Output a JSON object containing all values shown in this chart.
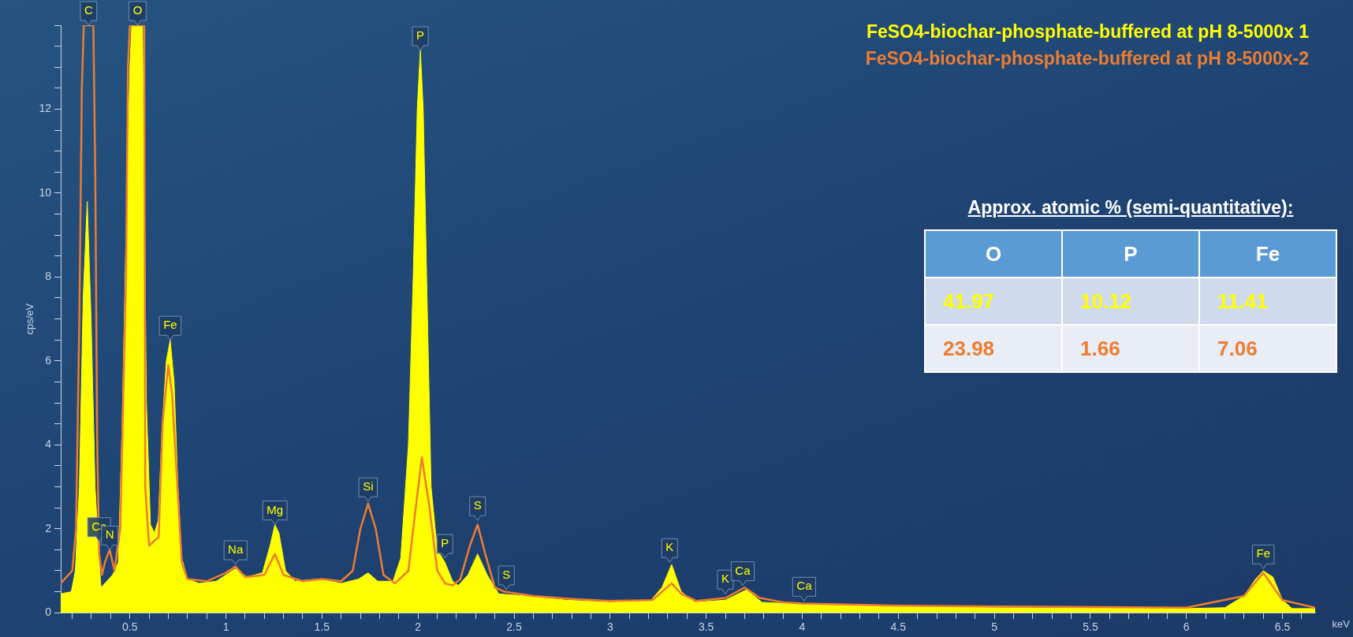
{
  "chart_data": [
    {
      "type": "area",
      "xlabel": "keV",
      "ylabel": "cps/eV",
      "xlim": [
        0.14,
        6.67
      ],
      "ylim": [
        0,
        14
      ],
      "xticks": [
        {
          "value": 0.2,
          "label": null
        },
        {
          "value": 0.3,
          "label": null
        },
        {
          "value": 0.4,
          "label": null
        },
        0.5,
        {
          "value": 0.6,
          "label": null
        },
        {
          "value": 0.7,
          "label": null
        },
        {
          "value": 0.8,
          "label": null
        },
        {
          "value": 0.9,
          "label": null
        },
        1,
        {
          "value": 1.1,
          "label": null
        },
        {
          "value": 1.2,
          "label": null
        },
        {
          "value": 1.3,
          "label": null
        },
        {
          "value": 1.4,
          "label": null
        },
        1.5,
        {
          "value": 1.6,
          "label": null
        },
        {
          "value": 1.7,
          "label": null
        },
        {
          "value": 1.8,
          "label": null
        },
        {
          "value": 1.9,
          "label": null
        },
        2,
        {
          "value": 2.1,
          "label": null
        },
        {
          "value": 2.2,
          "label": null
        },
        {
          "value": 2.3,
          "label": null
        },
        {
          "value": 2.4,
          "label": null
        },
        2.5,
        {
          "value": 2.6,
          "label": null
        },
        {
          "value": 2.7,
          "label": null
        },
        {
          "value": 2.8,
          "label": null
        },
        {
          "value": 2.9,
          "label": null
        },
        3,
        {
          "value": 3.1,
          "label": null
        },
        {
          "value": 3.2,
          "label": null
        },
        {
          "value": 3.3,
          "label": null
        },
        {
          "value": 3.4,
          "label": null
        },
        3.5,
        {
          "value": 3.6,
          "label": null
        },
        {
          "value": 3.7,
          "label": null
        },
        {
          "value": 3.8,
          "label": null
        },
        {
          "value": 3.9,
          "label": null
        },
        4,
        {
          "value": 4.1,
          "label": null
        },
        {
          "value": 4.2,
          "label": null
        },
        {
          "value": 4.3,
          "label": null
        },
        {
          "value": 4.4,
          "label": null
        },
        4.5,
        {
          "value": 4.6,
          "label": null
        },
        {
          "value": 4.7,
          "label": null
        },
        {
          "value": 4.8,
          "label": null
        },
        {
          "value": 4.9,
          "label": null
        },
        5,
        {
          "value": 5.1,
          "label": null
        },
        {
          "value": 5.2,
          "label": null
        },
        {
          "value": 5.3,
          "label": null
        },
        {
          "value": 5.4,
          "label": null
        },
        5.5,
        {
          "value": 5.6,
          "label": null
        },
        {
          "value": 5.7,
          "label": null
        },
        {
          "value": 5.8,
          "label": null
        },
        {
          "value": 5.9,
          "label": null
        },
        6,
        {
          "value": 6.1,
          "label": null
        },
        {
          "value": 6.2,
          "label": null
        },
        {
          "value": 6.3,
          "label": null
        },
        {
          "value": 6.4,
          "label": null
        },
        6.5,
        {
          "value": 6.6,
          "label": null
        }
      ],
      "yticks": [
        0,
        {
          "value": 0.5,
          "label": null
        },
        {
          "value": 1,
          "label": null
        },
        {
          "value": 1.5,
          "label": null
        },
        2,
        {
          "value": 2.5,
          "label": null
        },
        {
          "value": 3,
          "label": null
        },
        {
          "value": 3.5,
          "label": null
        },
        4,
        {
          "value": 4.5,
          "label": null
        },
        {
          "value": 5,
          "label": null
        },
        {
          "value": 5.5,
          "label": null
        },
        6,
        {
          "value": 6.5,
          "label": null
        },
        {
          "value": 7,
          "label": null
        },
        {
          "value": 7.5,
          "label": null
        },
        8,
        {
          "value": 8.5,
          "label": null
        },
        {
          "value": 9,
          "label": null
        },
        {
          "value": 9.5,
          "label": null
        },
        10,
        {
          "value": 10.5,
          "label": null
        },
        {
          "value": 11,
          "label": null
        },
        {
          "value": 11.5,
          "label": null
        },
        12,
        {
          "value": 12.5,
          "label": null
        },
        {
          "value": 13,
          "label": null
        },
        {
          "value": 13.5,
          "label": null
        },
        {
          "value": 14,
          "label": null
        }
      ],
      "grid": false,
      "legend": "top right",
      "marker": "none",
      "series": [
        {
          "name": "FeSO4-biochar-phosphate-buffered at pH 8-5000x 1",
          "type": "area",
          "color": "#ffff00",
          "x": [
            0.14,
            0.195,
            0.216,
            0.237,
            0.257,
            0.278,
            0.298,
            0.319,
            0.34,
            0.35,
            0.38,
            0.41,
            0.44,
            0.46,
            0.48,
            0.5,
            0.51,
            0.566,
            0.586,
            0.607,
            0.628,
            0.648,
            0.669,
            0.69,
            0.71,
            0.73,
            0.75,
            0.77,
            0.8,
            0.86,
            0.95,
            1.0,
            1.05,
            1.11,
            1.19,
            1.23,
            1.255,
            1.276,
            1.31,
            1.36,
            1.48,
            1.6,
            1.69,
            1.74,
            1.79,
            1.87,
            1.91,
            1.95,
            1.975,
            1.996,
            2.012,
            2.027,
            2.047,
            2.068,
            2.1,
            2.14,
            2.18,
            2.21,
            2.26,
            2.31,
            2.36,
            2.42,
            2.56,
            2.77,
            3.0,
            3.21,
            3.27,
            3.32,
            3.37,
            3.44,
            3.6,
            3.71,
            3.79,
            4.0,
            4.54,
            5.0,
            6.0,
            6.2,
            6.3,
            6.36,
            6.4,
            6.45,
            6.5,
            6.55,
            6.67
          ],
          "values": [
            0.45,
            0.5,
            1.0,
            3.0,
            7.5,
            9.8,
            7.0,
            3.0,
            1.2,
            0.6,
            0.75,
            0.9,
            1.2,
            4.5,
            9,
            13,
            14,
            14,
            5,
            2.1,
            1.9,
            2.2,
            4.5,
            6.0,
            6.5,
            5.5,
            3,
            1.3,
            0.8,
            0.7,
            0.75,
            0.9,
            1.05,
            0.85,
            0.95,
            1.6,
            2.1,
            1.9,
            1.0,
            0.75,
            0.8,
            0.7,
            0.8,
            0.95,
            0.75,
            0.75,
            1.3,
            4,
            8,
            12,
            13.4,
            12,
            7.5,
            3,
            1.5,
            1.2,
            0.75,
            0.65,
            0.9,
            1.4,
            0.9,
            0.45,
            0.4,
            0.3,
            0.25,
            0.28,
            0.6,
            1.15,
            0.5,
            0.25,
            0.3,
            0.55,
            0.25,
            0.2,
            0.15,
            0.12,
            0.1,
            0.12,
            0.4,
            0.8,
            1.0,
            0.85,
            0.3,
            0.1,
            0.1
          ]
        },
        {
          "name": "FeSO4-biochar-phosphate-buffered at pH 8-5000x-2",
          "type": "line",
          "color": "#ed7d31",
          "x": [
            0.14,
            0.2,
            0.22,
            0.237,
            0.25,
            0.26,
            0.31,
            0.32,
            0.33,
            0.34,
            0.355,
            0.37,
            0.395,
            0.42,
            0.45,
            0.46,
            0.48,
            0.49,
            0.5,
            0.575,
            0.58,
            0.6,
            0.65,
            0.67,
            0.7,
            0.72,
            0.75,
            0.77,
            0.8,
            0.9,
            1.0,
            1.05,
            1.1,
            1.2,
            1.255,
            1.3,
            1.4,
            1.5,
            1.6,
            1.66,
            1.7,
            1.74,
            1.78,
            1.82,
            1.88,
            1.95,
            1.98,
            2.02,
            2.06,
            2.1,
            2.14,
            2.18,
            2.22,
            2.27,
            2.31,
            2.35,
            2.4,
            2.45,
            2.6,
            2.8,
            3.0,
            3.22,
            3.27,
            3.32,
            3.37,
            3.45,
            3.6,
            3.7,
            3.78,
            3.9,
            4.0,
            4.5,
            5.0,
            6.0,
            6.3,
            6.4,
            6.5,
            6.67
          ],
          "values": [
            0.7,
            1.0,
            2.0,
            7.0,
            12.5,
            14,
            14,
            10.4,
            4,
            1.4,
            0.9,
            1.2,
            1.5,
            1.0,
            2,
            4.0,
            8,
            13,
            14,
            14,
            3,
            1.6,
            1.8,
            4.5,
            5.9,
            5.2,
            2.8,
            1.2,
            0.8,
            0.75,
            0.95,
            1.1,
            0.85,
            0.9,
            1.4,
            0.9,
            0.75,
            0.8,
            0.75,
            1.0,
            2.0,
            2.6,
            2.0,
            0.9,
            0.7,
            1.0,
            2.2,
            3.7,
            2.5,
            1.0,
            0.7,
            0.65,
            0.8,
            1.6,
            2.1,
            1.4,
            0.6,
            0.5,
            0.4,
            0.33,
            0.28,
            0.3,
            0.5,
            0.7,
            0.45,
            0.28,
            0.35,
            0.6,
            0.35,
            0.25,
            0.22,
            0.17,
            0.15,
            0.12,
            0.4,
            0.95,
            0.3,
            0.12
          ]
        }
      ],
      "annotations": [
        {
          "text": "C",
          "x": 0.285,
          "y": 14
        },
        {
          "text": "O",
          "x": 0.54,
          "y": 14
        },
        {
          "text": "Ca",
          "x": 0.34,
          "y": 1.7
        },
        {
          "text": "N",
          "x": 0.395,
          "y": 1.5
        },
        {
          "text": "Fe",
          "x": 0.71,
          "y": 6.5
        },
        {
          "text": "Na",
          "x": 1.05,
          "y": 1.15
        },
        {
          "text": "Mg",
          "x": 1.255,
          "y": 2.1
        },
        {
          "text": "Si",
          "x": 1.74,
          "y": 2.65
        },
        {
          "text": "P",
          "x": 2.012,
          "y": 13.4
        },
        {
          "text": "P",
          "x": 2.14,
          "y": 1.3
        },
        {
          "text": "S",
          "x": 2.31,
          "y": 2.2
        },
        {
          "text": "S",
          "x": 2.46,
          "y": 0.55
        },
        {
          "text": "K",
          "x": 3.31,
          "y": 1.2
        },
        {
          "text": "K",
          "x": 3.6,
          "y": 0.45
        },
        {
          "text": "Ca",
          "x": 3.69,
          "y": 0.65
        },
        {
          "text": "Ca",
          "x": 4.01,
          "y": 0.28
        },
        {
          "text": "Fe",
          "x": 6.4,
          "y": 1.05
        }
      ]
    },
    {
      "type": "other",
      "title": "Approx. atomic % (semi-quantitative):",
      "categories": [
        "O",
        "P",
        "Fe"
      ],
      "data_labels": true,
      "series": [
        {
          "color": "#ffff00",
          "values": [
            41.97,
            10.12,
            11.41
          ]
        },
        {
          "color": "#ed7d31",
          "values": [
            23.98,
            1.66,
            7.06
          ]
        }
      ]
    }
  ]
}
